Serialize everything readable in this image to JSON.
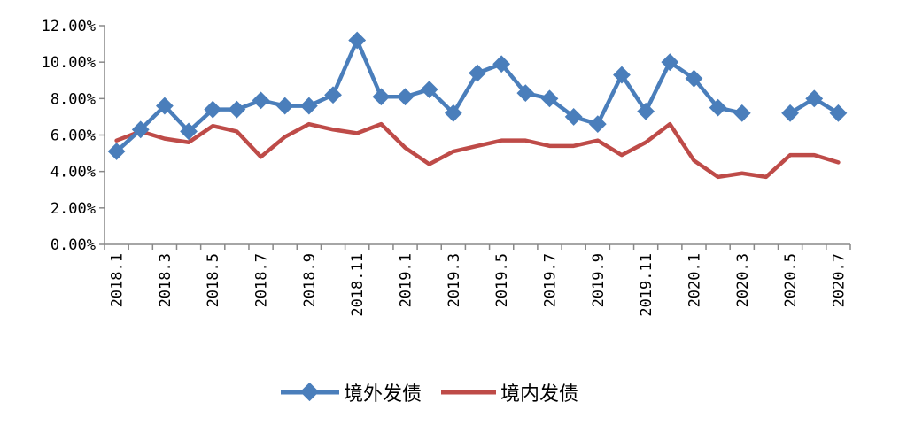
{
  "chart_data": {
    "type": "line",
    "x": [
      "2018.1",
      "2018.2",
      "2018.3",
      "2018.4",
      "2018.5",
      "2018.6",
      "2018.7",
      "2018.8",
      "2018.9",
      "2018.10",
      "2018.11",
      "2018.12",
      "2019.1",
      "2019.2",
      "2019.3",
      "2019.4",
      "2019.5",
      "2019.6",
      "2019.7",
      "2019.8",
      "2019.9",
      "2019.10",
      "2019.11",
      "2019.12",
      "2020.1",
      "2020.2",
      "2020.3",
      "2020.4",
      "2020.5",
      "2020.6",
      "2020.7"
    ],
    "x_tick_labels": [
      "2018.1",
      "2018.3",
      "2018.5",
      "2018.7",
      "2018.9",
      "2018.11",
      "2019.1",
      "2019.3",
      "2019.5",
      "2019.7",
      "2019.9",
      "2019.11",
      "2020.1",
      "2020.3",
      "2020.5",
      "2020.7"
    ],
    "y_tick_labels": [
      "0.00%",
      "2.00%",
      "4.00%",
      "6.00%",
      "8.00%",
      "10.00%",
      "12.00%"
    ],
    "ylim": [
      0,
      12
    ],
    "series": [
      {
        "name": "境外发债",
        "color": "#4a7ebb",
        "marker": "diamond",
        "values": [
          5.1,
          6.3,
          7.6,
          6.2,
          7.4,
          7.4,
          7.9,
          7.6,
          7.6,
          8.2,
          11.2,
          8.1,
          8.1,
          8.5,
          7.2,
          9.4,
          9.9,
          8.3,
          8.0,
          7.0,
          6.6,
          9.3,
          7.3,
          10.0,
          9.1,
          7.5,
          7.2,
          null,
          7.2,
          8.0,
          7.2
        ]
      },
      {
        "name": "境内发债",
        "color": "#be4b48",
        "marker": "none",
        "values": [
          5.7,
          6.2,
          5.8,
          5.6,
          6.5,
          6.2,
          4.8,
          5.9,
          6.6,
          6.3,
          6.1,
          6.6,
          5.3,
          4.4,
          5.1,
          5.4,
          5.7,
          5.7,
          5.4,
          5.4,
          5.7,
          4.9,
          5.6,
          6.6,
          4.6,
          3.7,
          3.9,
          3.7,
          4.9,
          4.9,
          4.5
        ]
      }
    ],
    "legend_position": "bottom",
    "grid": false
  }
}
